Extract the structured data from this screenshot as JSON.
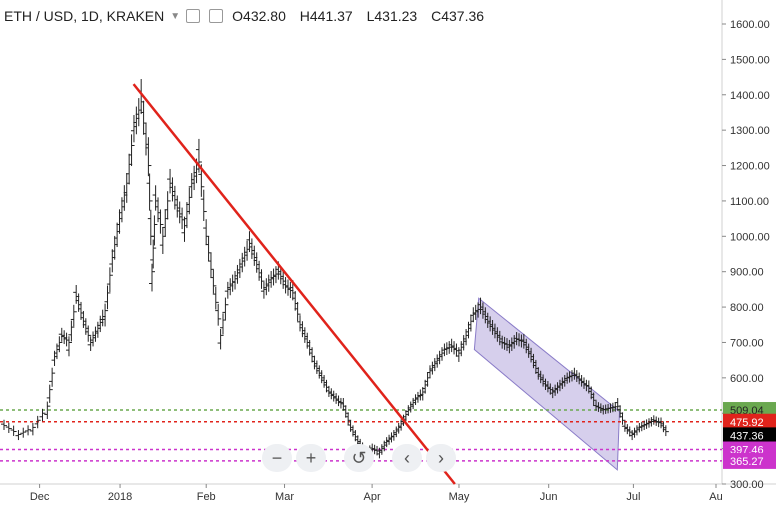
{
  "header": {
    "symbol_label": "ETH / USD, 1D, KRAKEN",
    "open_label": "O432.80",
    "high_label": "H441.37",
    "low_label": "L431.23",
    "close_label": "C437.36"
  },
  "toolbar": {
    "zoom_out_label": "−",
    "zoom_in_label": "+",
    "reset_label": "↺",
    "scroll_left_label": "‹",
    "scroll_right_label": "›"
  },
  "colors": {
    "trendline": "#e0231b",
    "channel_fill": "#b4a8dc",
    "channel_stroke": "#8a7cc8",
    "green_line": "#6aa84f",
    "red_line": "#e0231b",
    "magenta_line": "#cc33cc",
    "bars": "#222222"
  },
  "chart_data": {
    "type": "ohlc",
    "title": "ETH / USD, 1D, KRAKEN",
    "ylim": [
      300,
      1650
    ],
    "y_ticks": [
      "1600.00",
      "1500.00",
      "1400.00",
      "1300.00",
      "1200.00",
      "1100.00",
      "1000.00",
      "900.00",
      "800.00",
      "700.00",
      "600.00",
      "500.00",
      "400.00",
      "300.00"
    ],
    "x_labels": [
      {
        "label": "Dec",
        "t": 0.05
      },
      {
        "label": "2018",
        "t": 0.163
      },
      {
        "label": "Feb",
        "t": 0.284
      },
      {
        "label": "Mar",
        "t": 0.394
      },
      {
        "label": "Apr",
        "t": 0.517
      },
      {
        "label": "May",
        "t": 0.639
      },
      {
        "label": "Jun",
        "t": 0.765
      },
      {
        "label": "Jul",
        "t": 0.884
      },
      {
        "label": "Au",
        "t": 1.0
      }
    ],
    "price_levels": [
      {
        "label": "509.04",
        "value": 509.04,
        "color": "#6aa84f",
        "text_color": "#222222"
      },
      {
        "label": "475.92",
        "value": 475.92,
        "color": "#e0231b",
        "text_color": "#ffffff"
      },
      {
        "label": "437.36",
        "value": 437.36,
        "color": "#000000",
        "text_color": "#ffffff"
      },
      {
        "label": "397.46",
        "value": 397.46,
        "color": "#cc33cc",
        "text_color": "#ffffff"
      },
      {
        "label": "365.27",
        "value": 365.27,
        "color": "#cc33cc",
        "text_color": "#ffffff"
      }
    ],
    "trendline": {
      "start": [
        0.185,
        1430
      ],
      "end": [
        0.63,
        300
      ]
    },
    "channel": {
      "upper_start": [
        0.663,
        825
      ],
      "upper_end": [
        0.858,
        505
      ],
      "lower_start": [
        0.657,
        680
      ],
      "lower_end": [
        0.855,
        340
      ]
    },
    "price_series": [
      [
        0.0,
        465
      ],
      [
        0.02,
        440
      ],
      [
        0.04,
        460
      ],
      [
        0.06,
        520
      ],
      [
        0.07,
        660
      ],
      [
        0.08,
        720
      ],
      [
        0.09,
        700
      ],
      [
        0.1,
        830
      ],
      [
        0.11,
        760
      ],
      [
        0.12,
        700
      ],
      [
        0.13,
        740
      ],
      [
        0.14,
        790
      ],
      [
        0.15,
        940
      ],
      [
        0.16,
        1050
      ],
      [
        0.17,
        1150
      ],
      [
        0.18,
        1310
      ],
      [
        0.19,
        1380
      ],
      [
        0.2,
        1200
      ],
      [
        0.205,
        900
      ],
      [
        0.21,
        1100
      ],
      [
        0.22,
        1000
      ],
      [
        0.23,
        1150
      ],
      [
        0.24,
        1080
      ],
      [
        0.25,
        1030
      ],
      [
        0.26,
        1150
      ],
      [
        0.27,
        1210
      ],
      [
        0.28,
        1000
      ],
      [
        0.29,
        860
      ],
      [
        0.3,
        720
      ],
      [
        0.31,
        850
      ],
      [
        0.32,
        880
      ],
      [
        0.33,
        930
      ],
      [
        0.34,
        980
      ],
      [
        0.35,
        920
      ],
      [
        0.36,
        850
      ],
      [
        0.37,
        880
      ],
      [
        0.38,
        900
      ],
      [
        0.39,
        860
      ],
      [
        0.4,
        840
      ],
      [
        0.41,
        750
      ],
      [
        0.42,
        700
      ],
      [
        0.43,
        640
      ],
      [
        0.44,
        600
      ],
      [
        0.45,
        560
      ],
      [
        0.46,
        540
      ],
      [
        0.47,
        520
      ],
      [
        0.48,
        460
      ],
      [
        0.49,
        420
      ],
      [
        0.5,
        390
      ],
      [
        0.51,
        400
      ],
      [
        0.52,
        390
      ],
      [
        0.53,
        420
      ],
      [
        0.54,
        440
      ],
      [
        0.55,
        470
      ],
      [
        0.56,
        510
      ],
      [
        0.57,
        540
      ],
      [
        0.58,
        560
      ],
      [
        0.59,
        620
      ],
      [
        0.6,
        650
      ],
      [
        0.61,
        680
      ],
      [
        0.62,
        690
      ],
      [
        0.63,
        670
      ],
      [
        0.64,
        720
      ],
      [
        0.65,
        780
      ],
      [
        0.66,
        800
      ],
      [
        0.67,
        760
      ],
      [
        0.68,
        730
      ],
      [
        0.69,
        700
      ],
      [
        0.7,
        690
      ],
      [
        0.71,
        710
      ],
      [
        0.72,
        700
      ],
      [
        0.73,
        660
      ],
      [
        0.74,
        610
      ],
      [
        0.75,
        580
      ],
      [
        0.76,
        560
      ],
      [
        0.77,
        580
      ],
      [
        0.78,
        600
      ],
      [
        0.79,
        610
      ],
      [
        0.8,
        590
      ],
      [
        0.81,
        570
      ],
      [
        0.82,
        520
      ],
      [
        0.83,
        510
      ],
      [
        0.84,
        515
      ],
      [
        0.85,
        520
      ],
      [
        0.86,
        460
      ],
      [
        0.87,
        440
      ],
      [
        0.88,
        460
      ],
      [
        0.89,
        470
      ],
      [
        0.9,
        480
      ],
      [
        0.91,
        470
      ],
      [
        0.92,
        437
      ]
    ]
  }
}
